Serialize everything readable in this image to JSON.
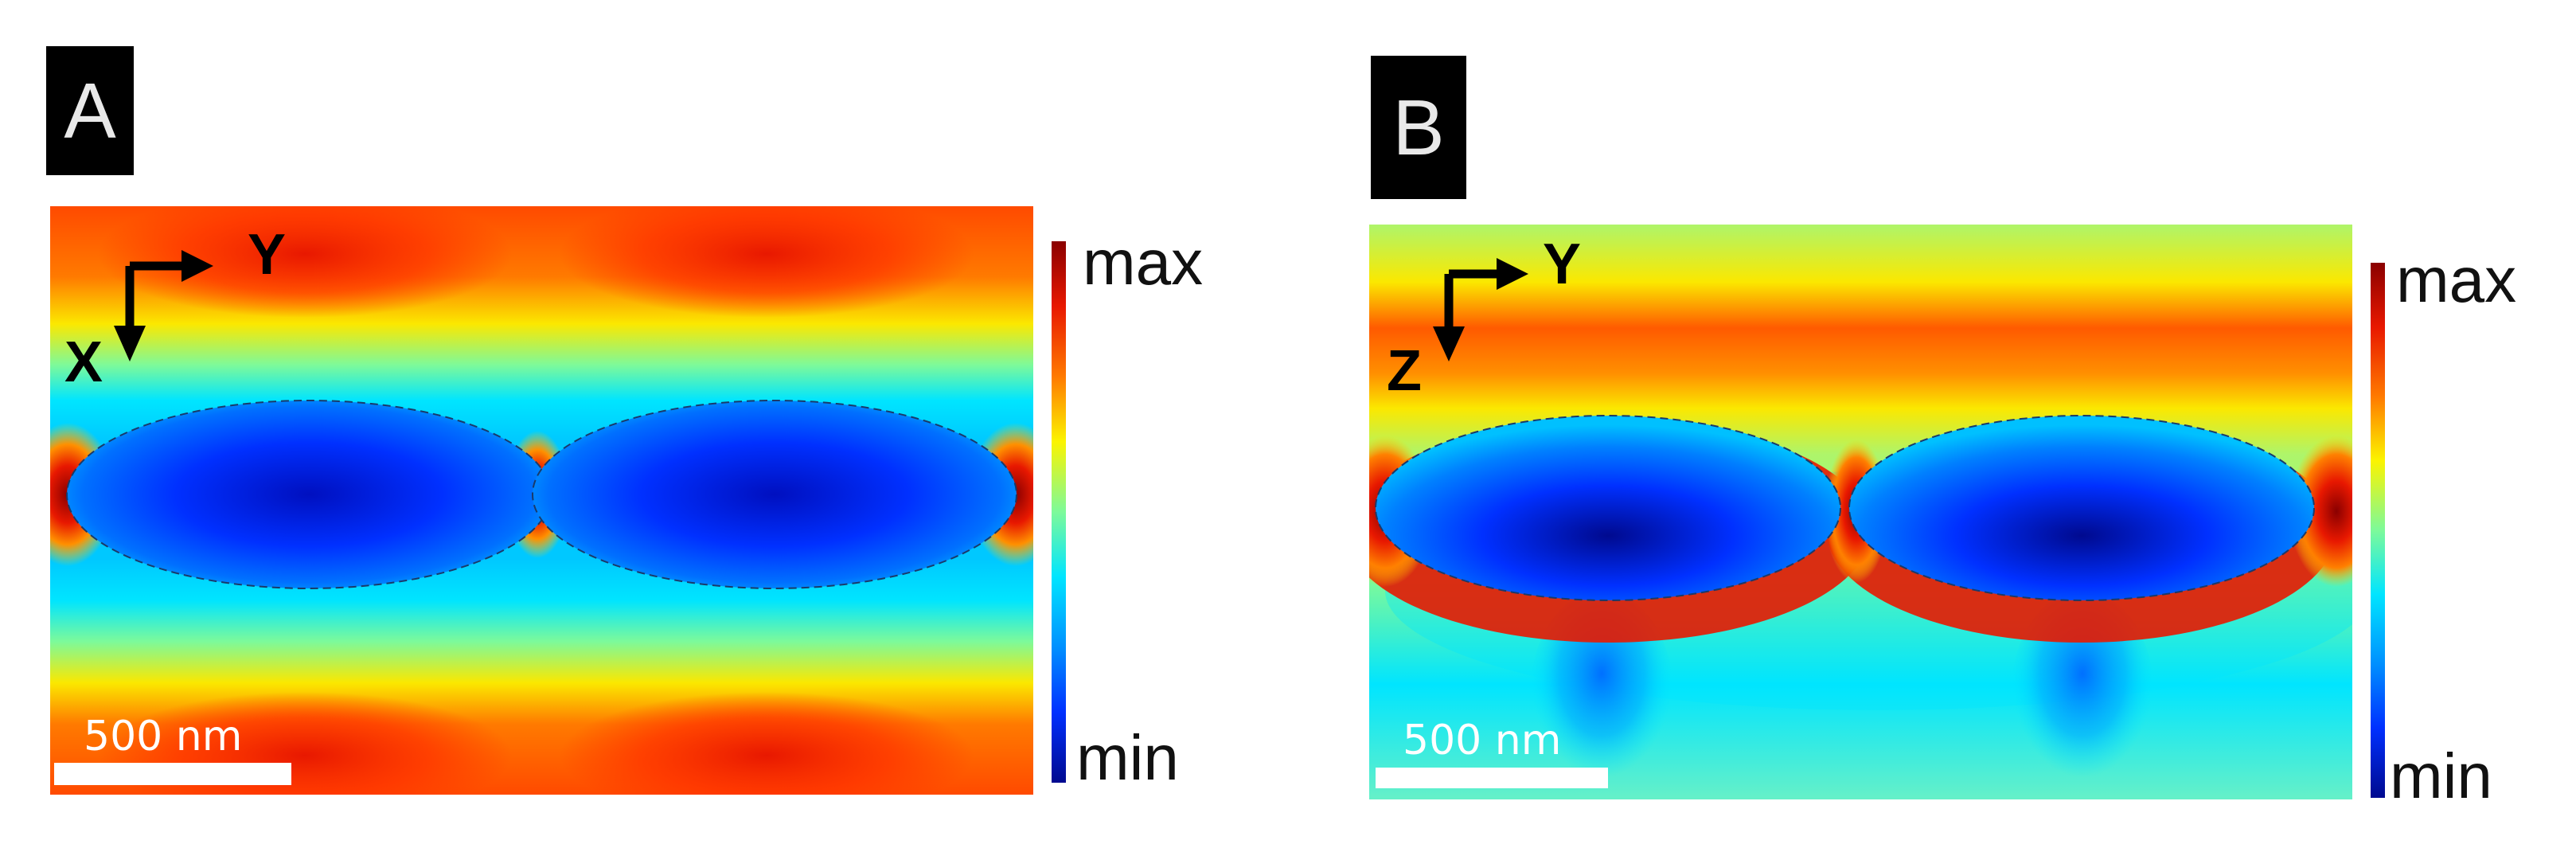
{
  "panels": [
    {
      "id": "A",
      "tag": "A",
      "colorbar": {
        "max": "max",
        "min": "min"
      },
      "scale_bar": "500 nm",
      "axes": {
        "horizontal": "Y",
        "vertical": "X"
      }
    },
    {
      "id": "B",
      "tag": "B",
      "colorbar": {
        "max": "max",
        "min": "min"
      },
      "scale_bar": "500 nm",
      "axes": {
        "horizontal": "Y",
        "vertical": "Z"
      }
    }
  ],
  "colormap": [
    "#000a8f",
    "#0030ff",
    "#0090ff",
    "#00e5ff",
    "#7dfa9a",
    "#fbf400",
    "#ffb300",
    "#ff5a00",
    "#e81800",
    "#8a0000"
  ]
}
